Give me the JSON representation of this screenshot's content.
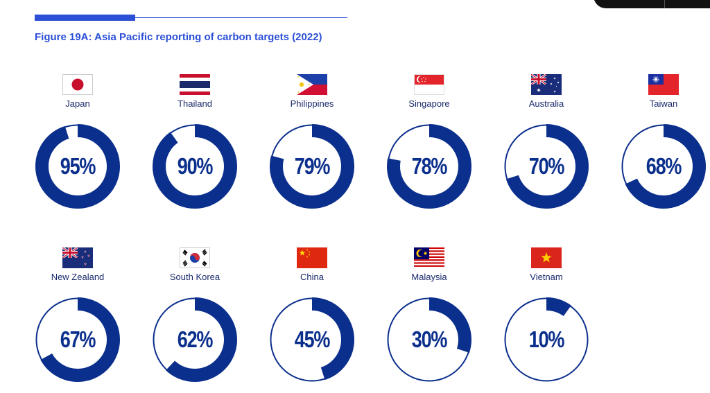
{
  "colors": {
    "accent": "#2b4fd6",
    "ring": "#0b2f8c",
    "track": "#0b2f8c"
  },
  "figure": {
    "title": "Figure 19A: Asia Pacific reporting of carbon targets (2022)"
  },
  "chart_data": {
    "type": "donut",
    "title": "Figure 19A: Asia Pacific reporting of carbon targets (2022)",
    "unit": "%",
    "categories": [
      "Japan",
      "Thailand",
      "Philippines",
      "Singapore",
      "Australia",
      "Taiwan",
      "New Zealand",
      "South Korea",
      "China",
      "Malaysia",
      "Vietnam"
    ],
    "values": [
      95,
      90,
      79,
      78,
      70,
      68,
      67,
      62,
      45,
      30,
      10
    ],
    "items": [
      {
        "country": "Japan",
        "label": "95%",
        "value": 95,
        "flag": "japan-flag-icon"
      },
      {
        "country": "Thailand",
        "label": "90%",
        "value": 90,
        "flag": "thailand-flag-icon"
      },
      {
        "country": "Philippines",
        "label": "79%",
        "value": 79,
        "flag": "philippines-flag-icon"
      },
      {
        "country": "Singapore",
        "label": "78%",
        "value": 78,
        "flag": "singapore-flag-icon"
      },
      {
        "country": "Australia",
        "label": "70%",
        "value": 70,
        "flag": "australia-flag-icon"
      },
      {
        "country": "Taiwan",
        "label": "68%",
        "value": 68,
        "flag": "taiwan-flag-icon"
      },
      {
        "country": "New Zealand",
        "label": "67%",
        "value": 67,
        "flag": "new-zealand-flag-icon"
      },
      {
        "country": "South Korea",
        "label": "62%",
        "value": 62,
        "flag": "south-korea-flag-icon"
      },
      {
        "country": "China",
        "label": "45%",
        "value": 45,
        "flag": "china-flag-icon"
      },
      {
        "country": "Malaysia",
        "label": "30%",
        "value": 30,
        "flag": "malaysia-flag-icon"
      },
      {
        "country": "Vietnam",
        "label": "10%",
        "value": 10,
        "flag": "vietnam-flag-icon"
      }
    ]
  }
}
